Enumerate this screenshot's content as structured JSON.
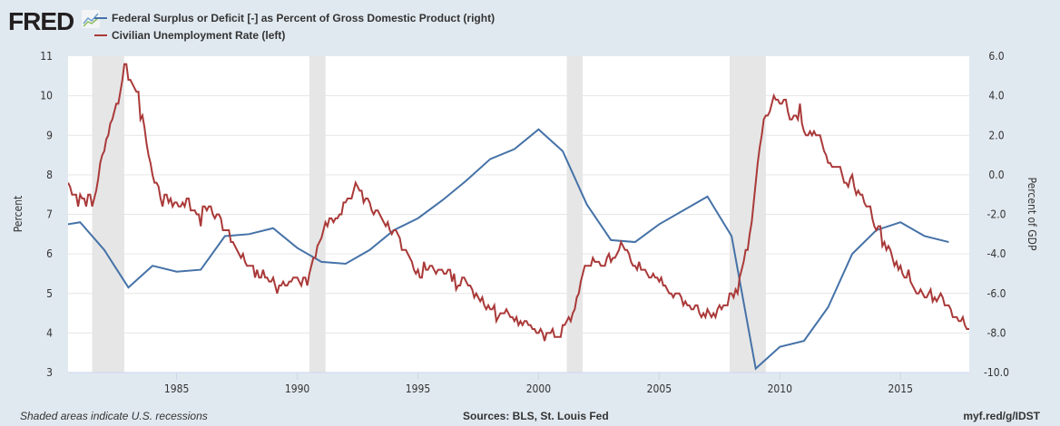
{
  "logo_text": "FRED",
  "footer": {
    "note": "Shaded areas indicate U.S. recessions",
    "sources": "Sources: BLS, St. Louis Fed",
    "link": "myf.red/g/IDST"
  },
  "chart_data": {
    "type": "line",
    "xlim": [
      1980.5,
      2017.85
    ],
    "x_ticks": [
      "1985",
      "1990",
      "1995",
      "2000",
      "2005",
      "2010",
      "2015"
    ],
    "y_left": {
      "label": "Percent",
      "lim": [
        3,
        11
      ],
      "ticks": [
        "3",
        "4",
        "5",
        "6",
        "7",
        "8",
        "9",
        "10",
        "11"
      ]
    },
    "y_right": {
      "label": "Percent of GDP",
      "lim": [
        -10,
        6
      ],
      "ticks": [
        "-10.0",
        "-8.0",
        "-6.0",
        "-4.0",
        "-2.0",
        "0.0",
        "2.0",
        "4.0",
        "6.0"
      ]
    },
    "grid": true,
    "legend_placement": "top-left",
    "recessions": [
      [
        1981.5,
        1982.83
      ],
      [
        1990.5,
        1991.17
      ],
      [
        2001.17,
        2001.83
      ],
      [
        2007.92,
        2009.42
      ]
    ],
    "series": [
      {
        "name": "Federal Surplus or Deficit [-] as Percent of Gross Domestic Product (right)",
        "axis": "right",
        "color": "#4572a7",
        "frequency": "annual",
        "start_year": 1980,
        "values": [
          -2.6,
          -2.4,
          -3.8,
          -5.7,
          -4.6,
          -4.9,
          -4.8,
          -3.1,
          -3.0,
          -2.7,
          -3.7,
          -4.4,
          -4.5,
          -3.8,
          -2.8,
          -2.2,
          -1.3,
          -0.3,
          0.8,
          1.3,
          2.3,
          1.2,
          -1.5,
          -3.3,
          -3.4,
          -2.5,
          -1.8,
          -1.1,
          -3.1,
          -9.8,
          -8.7,
          -8.4,
          -6.7,
          -4.0,
          -2.8,
          -2.4,
          -3.1,
          -3.4
        ]
      },
      {
        "name": "Civilian Unemployment Rate (left)",
        "axis": "left",
        "color": "#aa3939",
        "frequency": "monthly",
        "start": "1980-07",
        "values": [
          7.8,
          7.7,
          7.5,
          7.5,
          7.5,
          7.2,
          7.5,
          7.4,
          7.4,
          7.2,
          7.5,
          7.5,
          7.2,
          7.4,
          7.6,
          7.9,
          8.3,
          8.5,
          8.6,
          8.9,
          9.0,
          9.3,
          9.4,
          9.6,
          9.8,
          9.8,
          10.1,
          10.4,
          10.8,
          10.8,
          10.4,
          10.4,
          10.3,
          10.2,
          10.1,
          10.1,
          9.4,
          9.5,
          9.2,
          8.8,
          8.5,
          8.3,
          8.0,
          7.8,
          7.8,
          7.7,
          7.4,
          7.2,
          7.5,
          7.5,
          7.3,
          7.4,
          7.2,
          7.3,
          7.3,
          7.2,
          7.2,
          7.3,
          7.2,
          7.4,
          7.4,
          7.1,
          7.1,
          7.1,
          7.0,
          7.0,
          6.7,
          7.2,
          7.2,
          7.1,
          7.2,
          7.2,
          7.0,
          6.9,
          7.0,
          7.0,
          6.9,
          6.6,
          6.6,
          6.6,
          6.6,
          6.3,
          6.3,
          6.2,
          6.1,
          6.0,
          5.9,
          6.0,
          5.8,
          5.7,
          5.7,
          5.7,
          5.7,
          5.4,
          5.6,
          5.4,
          5.4,
          5.6,
          5.4,
          5.4,
          5.3,
          5.3,
          5.4,
          5.2,
          5.0,
          5.2,
          5.2,
          5.3,
          5.2,
          5.2,
          5.3,
          5.3,
          5.4,
          5.4,
          5.4,
          5.3,
          5.2,
          5.4,
          5.4,
          5.2,
          5.5,
          5.7,
          5.9,
          5.9,
          6.2,
          6.3,
          6.4,
          6.6,
          6.8,
          6.7,
          6.9,
          6.9,
          6.8,
          6.9,
          6.9,
          7.0,
          7.0,
          7.3,
          7.3,
          7.4,
          7.4,
          7.4,
          7.6,
          7.8,
          7.7,
          7.6,
          7.6,
          7.3,
          7.4,
          7.4,
          7.3,
          7.1,
          7.0,
          7.1,
          7.1,
          7.0,
          6.9,
          6.8,
          6.7,
          6.8,
          6.6,
          6.5,
          6.6,
          6.6,
          6.5,
          6.4,
          6.1,
          6.1,
          6.1,
          6.0,
          5.9,
          5.8,
          5.6,
          5.5,
          5.6,
          5.4,
          5.4,
          5.8,
          5.6,
          5.6,
          5.7,
          5.7,
          5.6,
          5.5,
          5.6,
          5.6,
          5.6,
          5.5,
          5.5,
          5.6,
          5.6,
          5.3,
          5.5,
          5.1,
          5.2,
          5.2,
          5.4,
          5.4,
          5.3,
          5.2,
          5.2,
          5.1,
          4.9,
          5.0,
          4.9,
          4.8,
          4.9,
          4.7,
          4.6,
          4.7,
          4.6,
          4.6,
          4.7,
          4.3,
          4.4,
          4.5,
          4.5,
          4.5,
          4.6,
          4.5,
          4.4,
          4.4,
          4.3,
          4.4,
          4.2,
          4.3,
          4.2,
          4.3,
          4.3,
          4.2,
          4.2,
          4.1,
          4.1,
          4.0,
          4.0,
          4.1,
          4.0,
          3.8,
          4.0,
          4.0,
          4.0,
          4.1,
          3.9,
          3.9,
          3.9,
          3.9,
          4.2,
          4.2,
          4.3,
          4.4,
          4.3,
          4.5,
          4.6,
          4.9,
          5.0,
          5.3,
          5.5,
          5.7,
          5.7,
          5.7,
          5.7,
          5.9,
          5.8,
          5.8,
          5.8,
          5.7,
          5.7,
          5.7,
          5.9,
          6.0,
          5.8,
          5.9,
          5.9,
          6.0,
          6.1,
          6.3,
          6.2,
          6.1,
          6.1,
          6.0,
          5.8,
          5.7,
          5.7,
          5.6,
          5.8,
          5.6,
          5.6,
          5.6,
          5.5,
          5.4,
          5.4,
          5.5,
          5.4,
          5.4,
          5.3,
          5.4,
          5.2,
          5.2,
          5.1,
          5.0,
          5.0,
          4.9,
          5.0,
          5.0,
          5.0,
          4.9,
          4.7,
          4.8,
          4.7,
          4.7,
          4.6,
          4.6,
          4.7,
          4.7,
          4.5,
          4.4,
          4.5,
          4.4,
          4.6,
          4.5,
          4.4,
          4.5,
          4.4,
          4.6,
          4.7,
          4.6,
          4.7,
          4.7,
          4.7,
          5.0,
          5.0,
          4.9,
          5.1,
          5.0,
          5.4,
          5.6,
          5.8,
          6.1,
          6.1,
          6.5,
          6.8,
          7.3,
          7.8,
          8.3,
          8.7,
          9.0,
          9.4,
          9.5,
          9.5,
          9.6,
          9.8,
          10.0,
          9.9,
          9.9,
          9.8,
          9.8,
          9.9,
          9.9,
          9.6,
          9.4,
          9.4,
          9.5,
          9.5,
          9.4,
          9.8,
          9.3,
          9.1,
          9.0,
          9.0,
          9.1,
          9.0,
          9.1,
          9.0,
          9.0,
          9.0,
          8.8,
          8.6,
          8.5,
          8.3,
          8.3,
          8.2,
          8.2,
          8.2,
          8.2,
          8.2,
          8.0,
          7.8,
          7.8,
          7.7,
          7.9,
          8.0,
          7.7,
          7.5,
          7.6,
          7.5,
          7.5,
          7.3,
          7.2,
          7.2,
          7.2,
          6.9,
          6.7,
          6.6,
          6.7,
          6.7,
          6.2,
          6.3,
          6.1,
          6.2,
          6.1,
          5.9,
          5.7,
          5.8,
          5.6,
          5.7,
          5.5,
          5.4,
          5.4,
          5.6,
          5.3,
          5.2,
          5.1,
          5.0,
          5.0,
          5.1,
          5.0,
          4.9,
          4.9,
          5.0,
          5.1,
          4.8,
          4.9,
          4.8,
          4.9,
          5.0,
          4.9,
          4.7,
          4.7,
          4.7,
          4.6,
          4.4,
          4.4,
          4.4,
          4.3,
          4.3,
          4.4,
          4.2,
          4.1,
          4.1,
          4.1
        ]
      }
    ]
  }
}
